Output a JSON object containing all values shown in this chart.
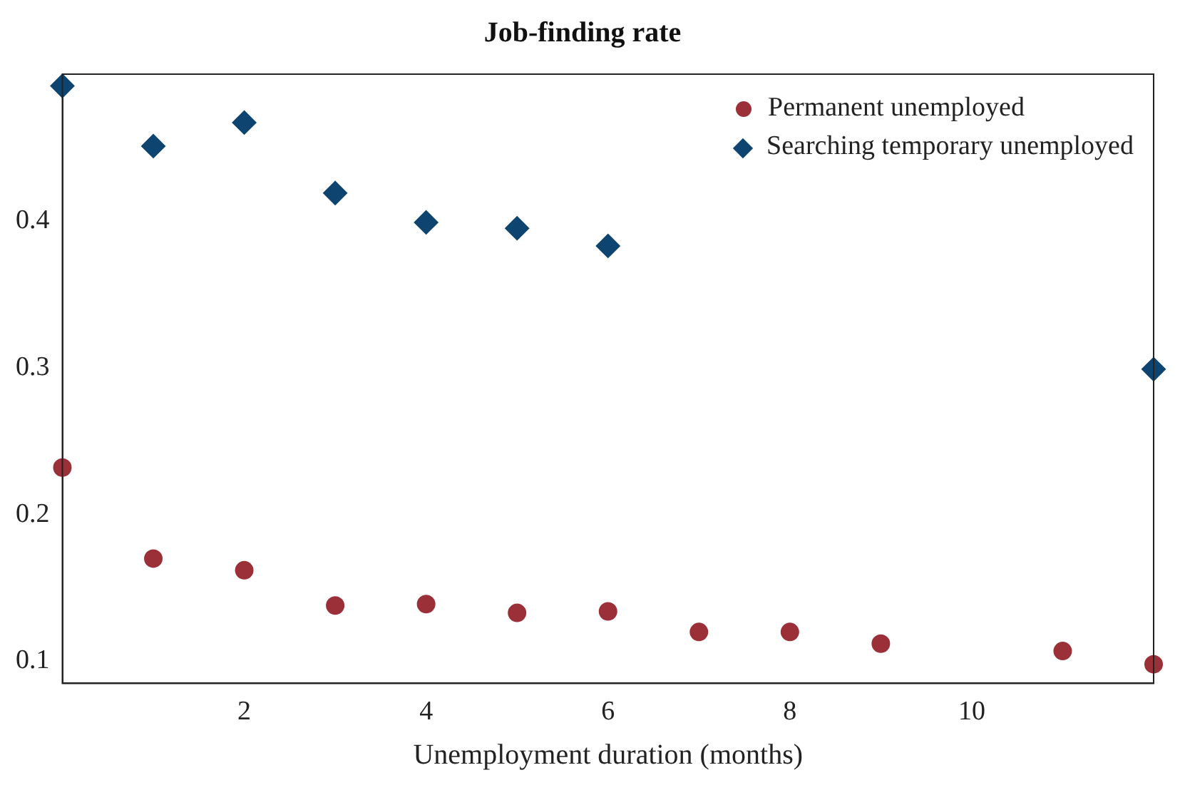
{
  "chart_data": {
    "type": "scatter",
    "title": "Job-finding rate",
    "xlabel": "Unemployment duration (months)",
    "series": [
      {
        "name": "Permanent unemployed",
        "color": "#9b3039",
        "marker": "circle",
        "x": [
          0,
          1,
          2,
          3,
          4,
          5,
          6,
          7,
          8,
          9,
          11,
          12
        ],
        "values": [
          0.232,
          0.17,
          0.162,
          0.138,
          0.139,
          0.133,
          0.134,
          0.12,
          0.12,
          0.112,
          0.107,
          0.098
        ]
      },
      {
        "name": "Searching temporary unemployed",
        "color": "#0e4470",
        "marker": "diamond",
        "x": [
          0,
          1,
          2,
          3,
          4,
          5,
          6,
          12
        ],
        "values": [
          0.492,
          0.451,
          0.467,
          0.419,
          0.399,
          0.395,
          0.383,
          0.299
        ]
      }
    ],
    "xlim": [
      0,
      12
    ],
    "xticks": [
      2,
      4,
      6,
      8,
      10
    ],
    "ylim": [
      0.085,
      0.5
    ],
    "yticks": [
      0.1,
      0.2,
      0.3,
      0.4
    ],
    "grid": false,
    "legend": "top right"
  }
}
